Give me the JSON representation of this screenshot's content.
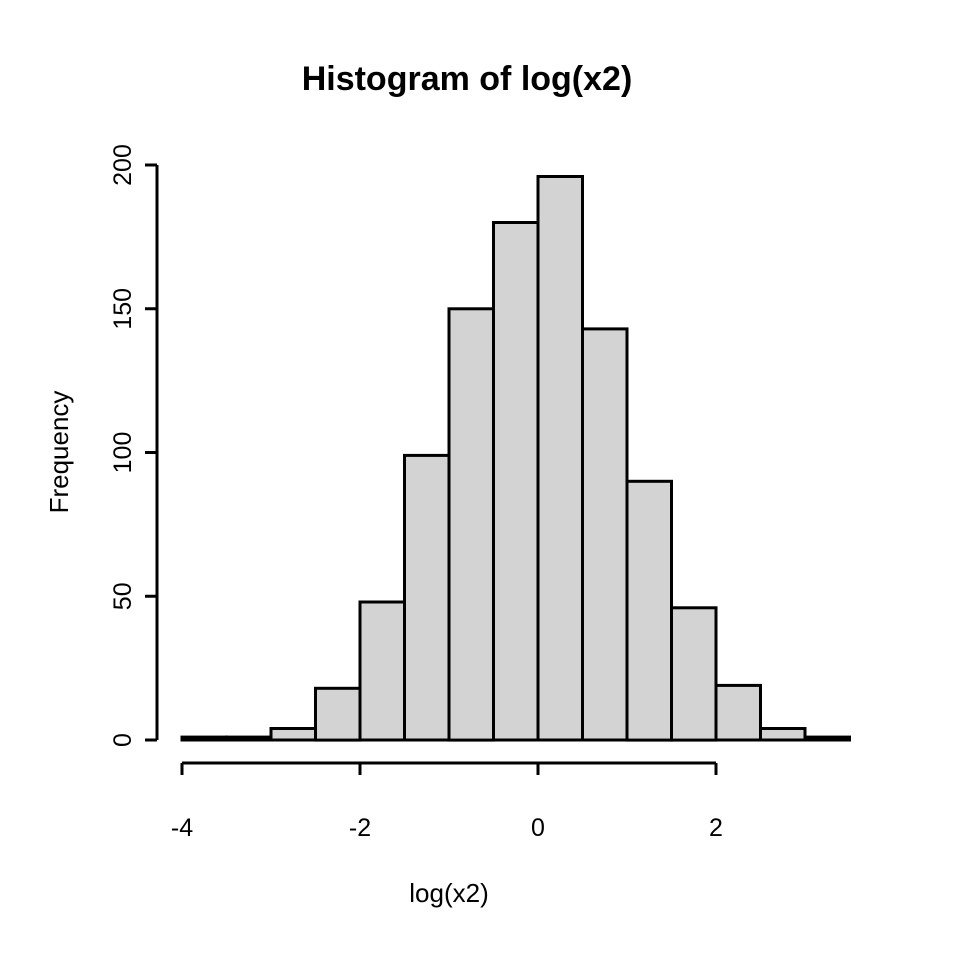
{
  "chart_data": {
    "type": "bar",
    "subtype": "histogram",
    "title": "Histogram of log(x2)",
    "xlabel": "log(x2)",
    "ylabel": "Frequency",
    "bin_start": -4,
    "bin_width": 0.5,
    "bin_edges": [
      -4,
      -3.5,
      -3,
      -2.5,
      -2,
      -1.5,
      -1,
      -0.5,
      0,
      0.5,
      1,
      1.5,
      2,
      2.5,
      3,
      3.5
    ],
    "counts": [
      1,
      1,
      4,
      18,
      48,
      99,
      150,
      180,
      196,
      143,
      90,
      46,
      19,
      4,
      1
    ],
    "x_ticks": [
      -4,
      -2,
      0,
      2
    ],
    "y_ticks": [
      0,
      50,
      100,
      150,
      200
    ],
    "xlim": [
      -4,
      3.5
    ],
    "ylim": [
      0,
      200
    ],
    "grid": false,
    "legend": "none",
    "colors": {
      "bar_fill": "#d3d3d3",
      "bar_stroke": "#000000",
      "axis_color": "#000000",
      "text_color": "#000000",
      "background": "#ffffff"
    }
  }
}
